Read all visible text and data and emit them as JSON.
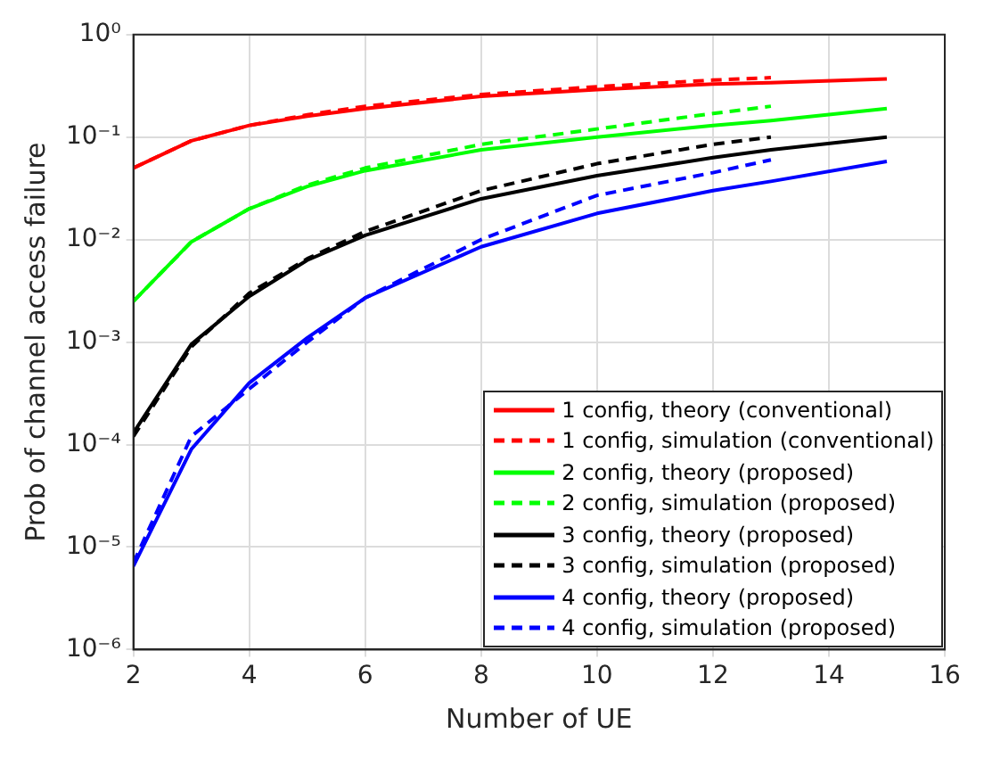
{
  "chart_data": {
    "type": "line",
    "xlabel": "Number of UE",
    "ylabel": "Prob of channel access failure",
    "log": "y",
    "grid": true,
    "legend": "bottom right",
    "marker": "none",
    "xlim": [
      2,
      16
    ],
    "xticks": [
      2,
      4,
      6,
      8,
      10,
      12,
      14,
      16
    ],
    "ylim": [
      1e-06,
      1
    ],
    "yticks": [
      {
        "value": 1e-06,
        "label": "10⁻⁶"
      },
      {
        "value": 1e-05,
        "label": "10⁻⁵"
      },
      {
        "value": 0.0001,
        "label": "10⁻⁴"
      },
      {
        "value": 0.001,
        "label": "10⁻³"
      },
      {
        "value": 0.01,
        "label": "10⁻²"
      },
      {
        "value": 0.1,
        "label": "10⁻¹"
      },
      {
        "value": 1,
        "label": "10⁰"
      }
    ],
    "series": [
      {
        "name": "1 config, theory (conventional)",
        "color": "#ff0000",
        "line_style": "solid",
        "x": [
          2,
          3,
          4,
          5,
          6,
          8,
          10,
          12,
          13,
          15
        ],
        "values": [
          0.05,
          0.092,
          0.13,
          0.16,
          0.19,
          0.25,
          0.29,
          0.33,
          0.34,
          0.37
        ]
      },
      {
        "name": "1 config, simulation (conventional)",
        "color": "#ff0000",
        "line_style": "dashed",
        "x": [
          2,
          3,
          4,
          5,
          6,
          8,
          10,
          12,
          13
        ],
        "values": [
          0.05,
          0.092,
          0.13,
          0.165,
          0.2,
          0.26,
          0.31,
          0.36,
          0.38
        ]
      },
      {
        "name": "2 config, theory (proposed)",
        "color": "#00ff00",
        "line_style": "solid",
        "x": [
          2,
          3,
          4,
          5,
          6,
          8,
          10,
          12,
          13,
          15
        ],
        "values": [
          0.0025,
          0.0095,
          0.02,
          0.033,
          0.047,
          0.075,
          0.1,
          0.13,
          0.145,
          0.19
        ]
      },
      {
        "name": "2 config, simulation (proposed)",
        "color": "#00ff00",
        "line_style": "dashed",
        "x": [
          2,
          3,
          4,
          5,
          6,
          8,
          10,
          12,
          13
        ],
        "values": [
          0.0025,
          0.0095,
          0.02,
          0.034,
          0.05,
          0.085,
          0.12,
          0.17,
          0.2
        ]
      },
      {
        "name": "3 config, theory (proposed)",
        "color": "#000000",
        "line_style": "solid",
        "x": [
          2,
          3,
          4,
          5,
          6,
          8,
          10,
          12,
          13,
          15
        ],
        "values": [
          0.00013,
          0.00095,
          0.0028,
          0.0063,
          0.011,
          0.025,
          0.042,
          0.063,
          0.075,
          0.1
        ]
      },
      {
        "name": "3 config, simulation (proposed)",
        "color": "#000000",
        "line_style": "dashed",
        "x": [
          2,
          3,
          4,
          5,
          6,
          8,
          10,
          12,
          13
        ],
        "values": [
          0.00012,
          0.0009,
          0.003,
          0.0065,
          0.012,
          0.03,
          0.055,
          0.085,
          0.1
        ]
      },
      {
        "name": "4 config, theory (proposed)",
        "color": "#0000ff",
        "line_style": "solid",
        "x": [
          2,
          3,
          4,
          5,
          6,
          8,
          10,
          12,
          13,
          15
        ],
        "values": [
          6.5e-06,
          9e-05,
          0.0004,
          0.0011,
          0.0027,
          0.0085,
          0.018,
          0.03,
          0.037,
          0.058
        ]
      },
      {
        "name": "4 config, simulation (proposed)",
        "color": "#0000ff",
        "line_style": "dashed",
        "x": [
          2,
          3,
          4,
          5,
          6,
          8,
          10,
          12,
          13
        ],
        "values": [
          7e-06,
          0.00012,
          0.00035,
          0.001,
          0.0027,
          0.01,
          0.027,
          0.045,
          0.06
        ]
      }
    ]
  }
}
